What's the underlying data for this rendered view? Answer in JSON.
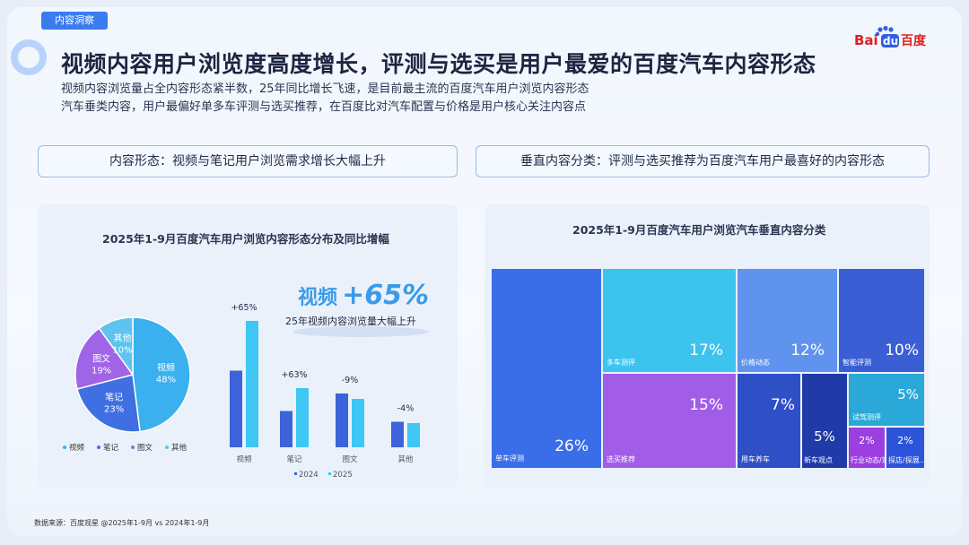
{
  "header": {
    "tag": "内容洞察",
    "title": "视频内容用户浏览度高度增长，评测与选买是用户最爱的百度汽车内容形态",
    "subtitle_1": "视频内容浏览量占全内容形态紧半数，25年同比增长飞速，是目前最主流的百度汽车用户浏览内容形态",
    "subtitle_2": "汽车垂类内容，用户最偏好单多车评测与选买推荐，在百度比对汽车配置与价格是用户核心关注内容点",
    "logo_text_1": "Bai",
    "logo_text_2": "du",
    "logo_text_3": "百度"
  },
  "pills": {
    "left": "内容形态：视频与笔记用户浏览需求增长大幅上升",
    "right": "垂直内容分类：评测与选买推荐为百度汽车用户最喜好的内容形态"
  },
  "highlight": {
    "label": "视频",
    "value": "+65%",
    "caption": "25年视频内容浏览量大幅上升"
  },
  "source": "数据来源：百度观星 @2025年1-9月 vs 2024年1-9月",
  "colors": {
    "video": "#3ab0ee",
    "note": "#3f6fe0",
    "image": "#a064e6",
    "other": "#5fc3f0",
    "bar2024": "#3c63d8",
    "bar2025": "#3ec6f4"
  },
  "chart_data": [
    {
      "type": "pie",
      "title": "2025年1-9月百度汽车用户浏览内容形态分布及同比增幅",
      "categories": [
        "视频",
        "笔记",
        "图文",
        "其他"
      ],
      "values": [
        48,
        23,
        19,
        10
      ],
      "labels": [
        "48%",
        "23%",
        "19%",
        "10%"
      ],
      "legend": [
        "视频",
        "笔记",
        "图文",
        "其他"
      ]
    },
    {
      "type": "bar",
      "categories": [
        "视频",
        "笔记",
        "图文",
        "其他"
      ],
      "series": [
        {
          "name": "2024",
          "values": [
            57,
            27,
            40,
            19
          ]
        },
        {
          "name": "2025",
          "values": [
            94,
            44,
            36,
            18
          ]
        }
      ],
      "growth_labels": [
        "+65%",
        "+63%",
        "-9%",
        "-4%"
      ],
      "legend": [
        "2024",
        "2025"
      ]
    },
    {
      "type": "treemap",
      "title": "2025年1-9月百度汽车用户浏览汽车垂直内容分类",
      "items": [
        {
          "name": "单车评测",
          "value": 26,
          "label": "26%",
          "color": "#3a6ee8"
        },
        {
          "name": "多车测评",
          "value": 17,
          "label": "17%",
          "color": "#3cc3ee"
        },
        {
          "name": "选买推荐",
          "value": 15,
          "label": "15%",
          "color": "#a25de8"
        },
        {
          "name": "价格动态",
          "value": 12,
          "label": "12%",
          "color": "#5f93ee"
        },
        {
          "name": "智能评测",
          "value": 10,
          "label": "10%",
          "color": "#3a5fd4"
        },
        {
          "name": "用车养车",
          "value": 7,
          "label": "7%",
          "color": "#2f4fc6"
        },
        {
          "name": "试驾测评",
          "value": 5,
          "label": "5%",
          "color": "#2aa8d8"
        },
        {
          "name": "新车观点",
          "value": 5,
          "label": "5%",
          "color": "#203aa8"
        },
        {
          "name": "行业动态/观点",
          "value": 2,
          "label": "2%",
          "color": "#9b3fe0"
        },
        {
          "name": "探店/探展…",
          "value": 2,
          "label": "2%",
          "color": "#2c54d8"
        }
      ]
    }
  ]
}
